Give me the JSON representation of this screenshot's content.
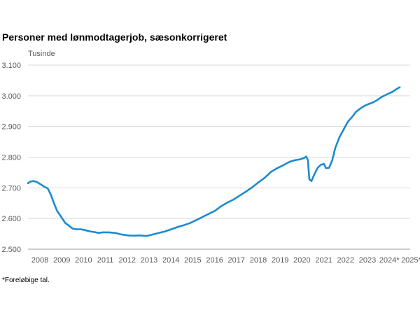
{
  "chart_data": {
    "type": "line",
    "title": "Personer med lønmodtagerjob, sæsonkorrigeret",
    "ylabel": "Tusinde",
    "ylim": [
      2500,
      3100
    ],
    "yticks": [
      {
        "value": 3100,
        "label": "3.100"
      },
      {
        "value": 3000,
        "label": "3.000"
      },
      {
        "value": 2900,
        "label": "2.900"
      },
      {
        "value": 2800,
        "label": "2.800"
      },
      {
        "value": 2700,
        "label": "2.700"
      },
      {
        "value": 2600,
        "label": "2.600"
      },
      {
        "value": 2500,
        "label": "2.500"
      }
    ],
    "xlim": [
      2008.0,
      2025.8
    ],
    "xticks": [
      "2008",
      "2009",
      "2010",
      "2011",
      "2012",
      "2013",
      "2014",
      "2015",
      "2016",
      "2017",
      "2018",
      "2019",
      "2020",
      "2021",
      "2022",
      "2023",
      "2024*",
      "2025*"
    ],
    "grid": true,
    "line_color": "#1b8bcf",
    "series": [
      {
        "points": [
          [
            2008.0,
            2715
          ],
          [
            2008.1,
            2720
          ],
          [
            2008.25,
            2722
          ],
          [
            2008.4,
            2720
          ],
          [
            2008.6,
            2712
          ],
          [
            2008.8,
            2703
          ],
          [
            2008.95,
            2698
          ],
          [
            2009.1,
            2678
          ],
          [
            2009.25,
            2650
          ],
          [
            2009.4,
            2625
          ],
          [
            2009.6,
            2605
          ],
          [
            2009.8,
            2585
          ],
          [
            2010.0,
            2575
          ],
          [
            2010.15,
            2567
          ],
          [
            2010.35,
            2565
          ],
          [
            2010.55,
            2565
          ],
          [
            2010.75,
            2562
          ],
          [
            2011.0,
            2558
          ],
          [
            2011.2,
            2556
          ],
          [
            2011.4,
            2553
          ],
          [
            2011.6,
            2555
          ],
          [
            2011.9,
            2555
          ],
          [
            2012.2,
            2553
          ],
          [
            2012.5,
            2548
          ],
          [
            2012.8,
            2545
          ],
          [
            2013.1,
            2544
          ],
          [
            2013.4,
            2545
          ],
          [
            2013.7,
            2543
          ],
          [
            2014.0,
            2548
          ],
          [
            2014.3,
            2553
          ],
          [
            2014.6,
            2558
          ],
          [
            2014.9,
            2565
          ],
          [
            2015.2,
            2572
          ],
          [
            2015.5,
            2578
          ],
          [
            2015.8,
            2585
          ],
          [
            2016.1,
            2595
          ],
          [
            2016.4,
            2605
          ],
          [
            2016.7,
            2615
          ],
          [
            2017.0,
            2625
          ],
          [
            2017.3,
            2640
          ],
          [
            2017.6,
            2652
          ],
          [
            2017.9,
            2662
          ],
          [
            2018.2,
            2675
          ],
          [
            2018.5,
            2688
          ],
          [
            2018.8,
            2702
          ],
          [
            2019.1,
            2718
          ],
          [
            2019.4,
            2733
          ],
          [
            2019.7,
            2752
          ],
          [
            2020.0,
            2764
          ],
          [
            2020.3,
            2774
          ],
          [
            2020.6,
            2785
          ],
          [
            2020.85,
            2790
          ],
          [
            2021.1,
            2793
          ],
          [
            2021.3,
            2797
          ],
          [
            2021.4,
            2802
          ],
          [
            2021.48,
            2790
          ],
          [
            2021.55,
            2728
          ],
          [
            2021.65,
            2722
          ],
          [
            2021.8,
            2745
          ],
          [
            2021.95,
            2765
          ],
          [
            2022.1,
            2775
          ],
          [
            2022.25,
            2778
          ],
          [
            2022.35,
            2764
          ],
          [
            2022.5,
            2765
          ],
          [
            2022.65,
            2790
          ],
          [
            2022.8,
            2830
          ],
          [
            2023.0,
            2865
          ],
          [
            2023.2,
            2890
          ],
          [
            2023.4,
            2915
          ],
          [
            2023.6,
            2930
          ],
          [
            2023.8,
            2948
          ],
          [
            2024.0,
            2958
          ],
          [
            2024.2,
            2967
          ],
          [
            2024.4,
            2973
          ],
          [
            2024.6,
            2978
          ],
          [
            2024.8,
            2985
          ],
          [
            2025.0,
            2995
          ],
          [
            2025.2,
            3002
          ],
          [
            2025.4,
            3008
          ],
          [
            2025.6,
            3015
          ],
          [
            2025.75,
            3022
          ],
          [
            2025.9,
            3028
          ]
        ]
      }
    ]
  },
  "footnote": "*Foreløbige tal."
}
